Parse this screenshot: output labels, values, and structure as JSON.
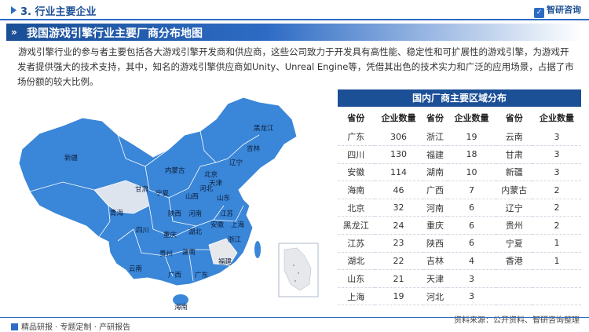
{
  "header": {
    "section_title": "3. 行业主要企业",
    "logo_text": "智研咨询"
  },
  "banner": {
    "title": "我国游戏引擎行业主要厂商分布地图"
  },
  "intro": "游戏引擎行业的参与者主要包括各大游戏引擎开发商和供应商，这些公司致力于开发具有高性能、稳定性和可扩展性的游戏引擎，为游戏开发者提供强大的技术支持，其中，知名的游戏引擎供应商如Unity、Unreal Engine等，凭借其出色的技术实力和广泛的应用场景，占据了市场份额的较大比例。",
  "map": {
    "labels": [
      "黑龙江",
      "吉林",
      "辽宁",
      "新疆",
      "内蒙古",
      "北京",
      "天津",
      "河北",
      "甘肃",
      "宁夏",
      "山西",
      "山东",
      "青海",
      "陕西",
      "河南",
      "江苏",
      "安徽",
      "上海",
      "四川",
      "重庆",
      "湖北",
      "浙江",
      "贵州",
      "湖南",
      "云南",
      "广西",
      "广东",
      "福建",
      "海南"
    ]
  },
  "table": {
    "title": "国内厂商主要区域分布",
    "columns": [
      "省份",
      "企业数量",
      "省份",
      "企业数量",
      "省份",
      "企业数量"
    ],
    "rows": [
      [
        "广东",
        "306",
        "浙江",
        "19",
        "云南",
        "3"
      ],
      [
        "四川",
        "130",
        "福建",
        "18",
        "甘肃",
        "3"
      ],
      [
        "安徽",
        "114",
        "湖南",
        "10",
        "新疆",
        "3"
      ],
      [
        "海南",
        "46",
        "广西",
        "7",
        "内蒙古",
        "2"
      ],
      [
        "北京",
        "32",
        "河南",
        "6",
        "辽宁",
        "2"
      ],
      [
        "黑龙江",
        "24",
        "重庆",
        "6",
        "贵州",
        "2"
      ],
      [
        "江苏",
        "23",
        "陕西",
        "6",
        "宁夏",
        "1"
      ],
      [
        "湖北",
        "22",
        "吉林",
        "4",
        "香港",
        "1"
      ],
      [
        "山东",
        "21",
        "天津",
        "3",
        "",
        ""
      ],
      [
        "上海",
        "19",
        "河北",
        "3",
        "",
        ""
      ]
    ]
  },
  "footer": {
    "left": "精品研报 · 专题定制 · 产研报告",
    "source": "资料来源：公开资料、智研咨询整理"
  },
  "colors": {
    "primary": "#1b4f96",
    "accent": "#2d6bc4",
    "map_fill": "#3a86d8",
    "map_muted": "#e6e8ec"
  }
}
